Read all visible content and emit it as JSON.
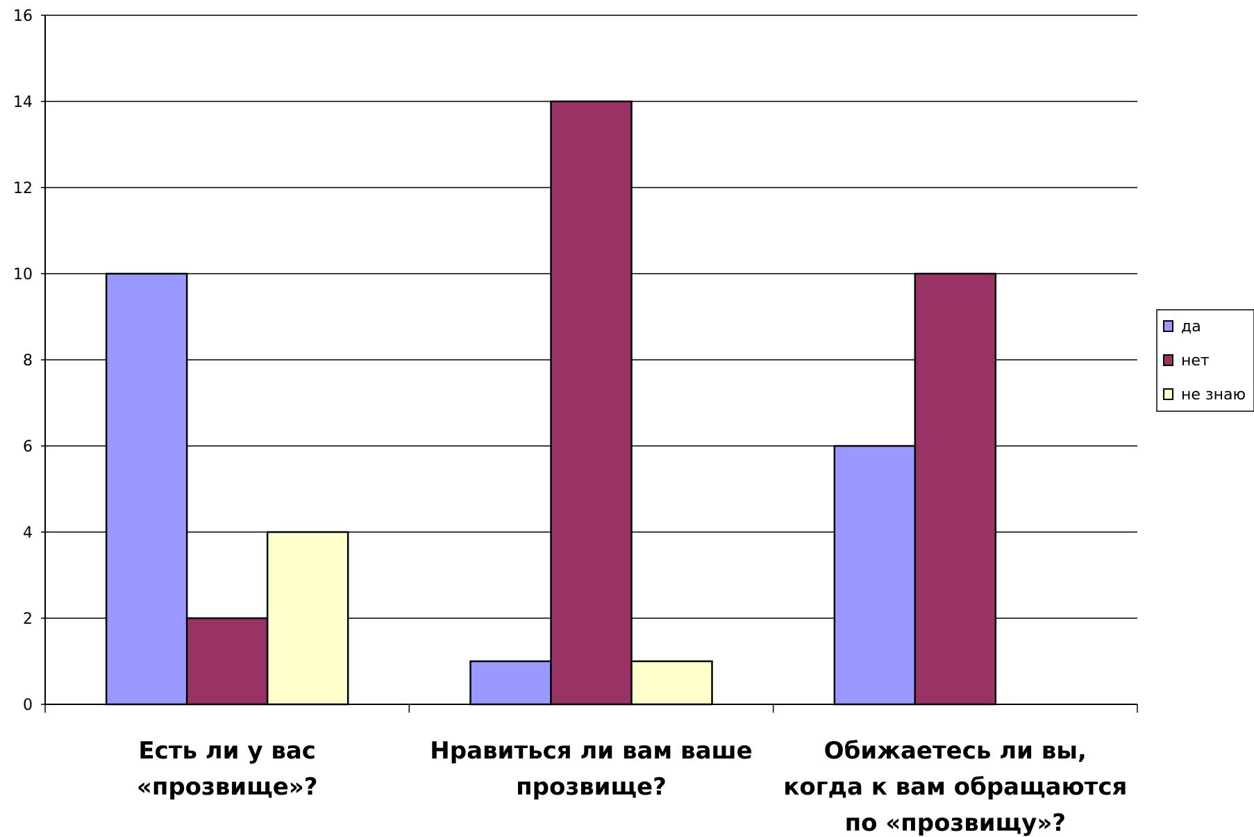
{
  "chart_data": {
    "type": "bar",
    "title": "",
    "xlabel": "",
    "ylabel": "",
    "ylim": [
      0,
      16
    ],
    "yticks": [
      "0",
      "2",
      "4",
      "6",
      "8",
      "10",
      "12",
      "14",
      "16"
    ],
    "grid": true,
    "legend_position": "right",
    "categories": [
      [
        "Есть ли у вас",
        "«прозвище»?"
      ],
      [
        "Нравиться ли вам ваше",
        "прозвище?"
      ],
      [
        "Обижаетесь ли вы,",
        "когда к вам обращаются",
        "по «прозвищу»?"
      ]
    ],
    "series": [
      {
        "name": "да",
        "color": "#9999ff",
        "values": [
          10,
          1,
          6
        ]
      },
      {
        "name": "нет",
        "color": "#993366",
        "values": [
          2,
          14,
          10
        ]
      },
      {
        "name": "не знаю",
        "color": "#ffffcc",
        "values": [
          4,
          1,
          0
        ]
      }
    ]
  }
}
